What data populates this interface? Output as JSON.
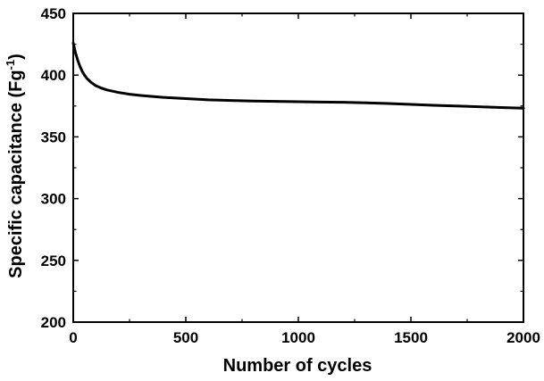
{
  "chart_data": {
    "type": "line",
    "xlabel": "Number of cycles",
    "ylabel": {
      "prefix": "Specific capacitance (Fg",
      "superscript": "-1",
      "suffix": ")"
    },
    "xlim": [
      0,
      2000
    ],
    "ylim": [
      200,
      450
    ],
    "x_ticks": [
      0,
      500,
      1000,
      1500,
      2000
    ],
    "y_ticks": [
      200,
      250,
      300,
      350,
      400,
      450
    ],
    "x_tick_labels": [
      "0",
      "500",
      "1000",
      "1500",
      "2000"
    ],
    "y_tick_labels": [
      "200",
      "250",
      "300",
      "350",
      "400",
      "450"
    ],
    "grid": false,
    "series": [
      {
        "color": "#000000",
        "x": [
          0,
          5,
          10,
          20,
          30,
          40,
          50,
          60,
          80,
          100,
          125,
          150,
          200,
          250,
          300,
          400,
          500,
          600,
          700,
          800,
          900,
          1000,
          1100,
          1200,
          1300,
          1400,
          1500,
          1600,
          1700,
          1800,
          1900,
          2000
        ],
        "y": [
          426,
          422,
          418,
          412,
          407,
          403,
          400,
          397.5,
          394,
          391.5,
          389.5,
          388,
          386,
          384.5,
          383.5,
          382,
          381,
          380,
          379.5,
          379,
          378.7,
          378.5,
          378.2,
          378,
          377.6,
          377,
          376.3,
          375.6,
          375,
          374.4,
          373.8,
          373.2
        ]
      }
    ]
  }
}
